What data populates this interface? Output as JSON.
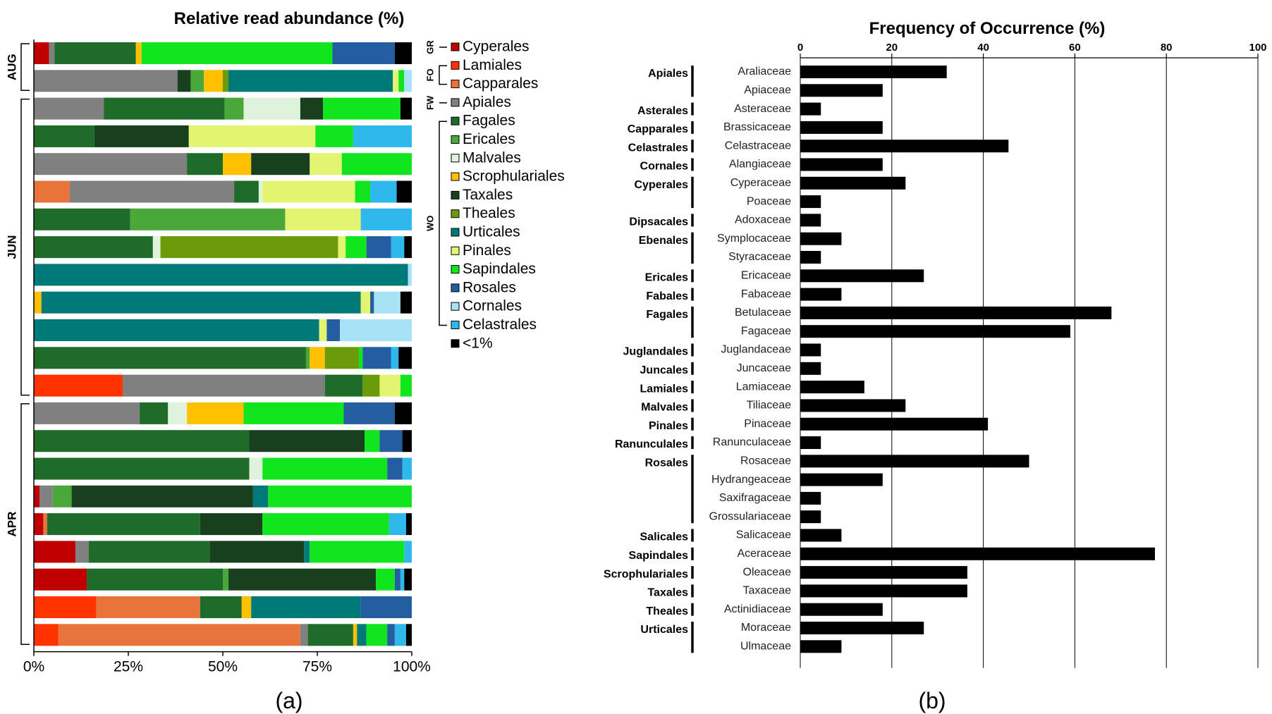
{
  "colors": {
    "Cyperales": "#c00000",
    "Lamiales": "#ff3300",
    "Capparales": "#e8743b",
    "Apiales": "#808080",
    "Fagales": "#1e6b2a",
    "Ericales": "#4aa83a",
    "Malvales": "#dff2dc",
    "Scrophulariales": "#ffc000",
    "Taxales": "#18401f",
    "Theales": "#6b9a0a",
    "Urticales": "#007a78",
    "Pinales": "#e2f470",
    "Sapindales": "#11e51e",
    "Rosales": "#245ea0",
    "Cornales": "#a8e2f7",
    "Celastrales": "#2eb8ec",
    "<1%": "#000000"
  },
  "panel_a_label": "(a)",
  "panel_b_label": "(b)",
  "chart_data": [
    {
      "type": "bar",
      "orientation": "horizontal-stacked",
      "title": "Relative read abundance (%)",
      "xlim": [
        0,
        100
      ],
      "x_tick_labels": [
        "0%",
        "25%",
        "50%",
        "75%",
        "100%"
      ],
      "groups": [
        {
          "label": "AUG",
          "rows": [
            0,
            1
          ]
        },
        {
          "label": "JUN",
          "rows": [
            2,
            12
          ]
        },
        {
          "label": "APR",
          "rows": [
            13,
            21
          ]
        }
      ],
      "legend": {
        "placement": "right",
        "items": [
          "Cyperales",
          "Lamiales",
          "Capparales",
          "Apiales",
          "Fagales",
          "Ericales",
          "Malvales",
          "Scrophulariales",
          "Taxales",
          "Theales",
          "Urticales",
          "Pinales",
          "Sapindales",
          "Rosales",
          "Cornales",
          "Celastrales",
          "<1%"
        ],
        "brackets": [
          {
            "label": "GR",
            "from": 0,
            "to": 0
          },
          {
            "label": "FO",
            "from": 1,
            "to": 2
          },
          {
            "label": "FW",
            "from": 3,
            "to": 3
          },
          {
            "label": "WO",
            "from": 4,
            "to": 15
          }
        ]
      },
      "rows": [
        [
          [
            "Cyperales",
            4
          ],
          [
            "Apiales",
            1.5
          ],
          [
            "Fagales",
            21.5
          ],
          [
            "Scrophulariales",
            1.5
          ],
          [
            "Sapindales",
            50.5
          ],
          [
            "Rosales",
            16.5
          ],
          [
            "<1%",
            4.5
          ]
        ],
        [
          [
            "Apiales",
            38
          ],
          [
            "Taxales",
            3.5
          ],
          [
            "Ericales",
            3.5
          ],
          [
            "Scrophulariales",
            5
          ],
          [
            "Theales",
            1.5
          ],
          [
            "Urticales",
            43.5
          ],
          [
            "Pinales",
            1.5
          ],
          [
            "Sapindales",
            1.5
          ],
          [
            "Cornales",
            2
          ]
        ],
        [
          [
            "Apiales",
            18.5
          ],
          [
            "Fagales",
            32
          ],
          [
            "Ericales",
            5
          ],
          [
            "Malvales",
            15
          ],
          [
            "Taxales",
            6
          ],
          [
            "Sapindales",
            20.5
          ],
          [
            "<1%",
            3
          ]
        ],
        [
          [
            "Fagales",
            16
          ],
          [
            "Taxales",
            25
          ],
          [
            "Pinales",
            33.5
          ],
          [
            "Sapindales",
            10
          ],
          [
            "Celastrales",
            15.5
          ]
        ],
        [
          [
            "Apiales",
            40.5
          ],
          [
            "Fagales",
            9.5
          ],
          [
            "Scrophulariales",
            7.5
          ],
          [
            "Taxales",
            15.5
          ],
          [
            "Pinales",
            8.5
          ],
          [
            "Sapindales",
            18.5
          ]
        ],
        [
          [
            "Capparales",
            9.5
          ],
          [
            "Apiales",
            43.5
          ],
          [
            "Fagales",
            6.5
          ],
          [
            "Malvales",
            1
          ],
          [
            "Pinales",
            24.5
          ],
          [
            "Sapindales",
            4
          ],
          [
            "Celastrales",
            7
          ],
          [
            "<1%",
            4
          ]
        ],
        [
          [
            "Fagales",
            25.5
          ],
          [
            "Ericales",
            41
          ],
          [
            "Pinales",
            20
          ],
          [
            "Celastrales",
            13.5
          ]
        ],
        [
          [
            "Fagales",
            31.5
          ],
          [
            "Malvales",
            2
          ],
          [
            "Theales",
            47
          ],
          [
            "Pinales",
            2
          ],
          [
            "Sapindales",
            5.5
          ],
          [
            "Rosales",
            6.5
          ],
          [
            "Celastrales",
            3.5
          ],
          [
            "<1%",
            2
          ]
        ],
        [
          [
            "Urticales",
            99
          ],
          [
            "Cornales",
            1
          ]
        ],
        [
          [
            "Scrophulariales",
            2
          ],
          [
            "Urticales",
            84.5
          ],
          [
            "Pinales",
            2.5
          ],
          [
            "Rosales",
            1
          ],
          [
            "Cornales",
            7
          ],
          [
            "<1%",
            3
          ]
        ],
        [
          [
            "Urticales",
            75.5
          ],
          [
            "Pinales",
            2
          ],
          [
            "Rosales",
            3.5
          ],
          [
            "Cornales",
            19
          ]
        ],
        [
          [
            "Fagales",
            72
          ],
          [
            "Ericales",
            1
          ],
          [
            "Scrophulariales",
            4
          ],
          [
            "Theales",
            9
          ],
          [
            "Sapindales",
            1
          ],
          [
            "Rosales",
            7.5
          ],
          [
            "Celastrales",
            2
          ],
          [
            "<1%",
            3.5
          ]
        ],
        [
          [
            "Lamiales",
            23.5
          ],
          [
            "Apiales",
            53.5
          ],
          [
            "Fagales",
            10
          ],
          [
            "Theales",
            4.5
          ],
          [
            "Pinales",
            5.5
          ],
          [
            "Sapindales",
            3
          ]
        ],
        [
          [
            "Apiales",
            28
          ],
          [
            "Fagales",
            7.5
          ],
          [
            "Malvales",
            5
          ],
          [
            "Scrophulariales",
            15
          ],
          [
            "Sapindales",
            26.5
          ],
          [
            "Rosales",
            13.5
          ],
          [
            "<1%",
            4.5
          ]
        ],
        [
          [
            "Fagales",
            57
          ],
          [
            "Taxales",
            30.5
          ],
          [
            "Sapindales",
            4
          ],
          [
            "Rosales",
            6
          ],
          [
            "<1%",
            2.5
          ]
        ],
        [
          [
            "Fagales",
            57
          ],
          [
            "Malvales",
            3.5
          ],
          [
            "Sapindales",
            33
          ],
          [
            "Rosales",
            4
          ],
          [
            "Celastrales",
            2.5
          ]
        ],
        [
          [
            "Cyperales",
            1.5
          ],
          [
            "Apiales",
            3.5
          ],
          [
            "Ericales",
            5
          ],
          [
            "Taxales",
            48
          ],
          [
            "Urticales",
            4
          ],
          [
            "Sapindales",
            38
          ]
        ],
        [
          [
            "Cyperales",
            2.5
          ],
          [
            "Capparales",
            1
          ],
          [
            "Fagales",
            40.5
          ],
          [
            "Taxales",
            16.5
          ],
          [
            "Sapindales",
            33.5
          ],
          [
            "Celastrales",
            4.5
          ],
          [
            "<1%",
            1.5
          ]
        ],
        [
          [
            "Cyperales",
            11
          ],
          [
            "Apiales",
            3.5
          ],
          [
            "Fagales",
            32
          ],
          [
            "Taxales",
            25
          ],
          [
            "Urticales",
            1.5
          ],
          [
            "Sapindales",
            25
          ],
          [
            "Celastrales",
            2
          ]
        ],
        [
          [
            "Cyperales",
            14
          ],
          [
            "Fagales",
            36
          ],
          [
            "Ericales",
            1.5
          ],
          [
            "Taxales",
            39
          ],
          [
            "Sapindales",
            5
          ],
          [
            "Rosales",
            1.5
          ],
          [
            "Celastrales",
            1
          ],
          [
            "<1%",
            2
          ]
        ],
        [
          [
            "Lamiales",
            16.5
          ],
          [
            "Capparales",
            27.5
          ],
          [
            "Fagales",
            11
          ],
          [
            "Scrophulariales",
            2.5
          ],
          [
            "Urticales",
            29
          ],
          [
            "Rosales",
            13.5
          ]
        ],
        [
          [
            "Lamiales",
            6.5
          ],
          [
            "Capparales",
            64
          ],
          [
            "Apiales",
            2
          ],
          [
            "Fagales",
            12
          ],
          [
            "Scrophulariales",
            1
          ],
          [
            "Urticales",
            2.5
          ],
          [
            "Sapindales",
            5.5
          ],
          [
            "Rosales",
            2
          ],
          [
            "Celastrales",
            3
          ],
          [
            "<1%",
            1.5
          ]
        ]
      ]
    },
    {
      "type": "bar",
      "orientation": "horizontal",
      "title": "Frequency of Occurrence (%)",
      "xlim": [
        0,
        100
      ],
      "x_tick_labels": [
        "0",
        "20",
        "40",
        "60",
        "80",
        "100"
      ],
      "grid": "vertical",
      "categories": [
        "Araliaceae",
        "Apiaceae",
        "Asteraceae",
        "Brassicaceae",
        "Celastraceae",
        "Alangiaceae",
        "Cyperaceae",
        "Poaceae",
        "Adoxaceae",
        "Symplocaceae",
        "Styracaceae",
        "Ericaceae",
        "Fabaceae",
        "Betulaceae",
        "Fagaceae",
        "Juglandaceae",
        "Juncaceae",
        "Lamiaceae",
        "Tiliaceae",
        "Pinaceae",
        "Ranunculaceae",
        "Rosaceae",
        "Hydrangeaceae",
        "Saxifragaceae",
        "Grossulariaceae",
        "Salicaceae",
        "Aceraceae",
        "Oleaceae",
        "Taxaceae",
        "Actinidiaceae",
        "Moraceae",
        "Ulmaceae"
      ],
      "values": [
        32,
        18,
        4.5,
        18,
        45.5,
        18,
        23,
        4.5,
        4.5,
        9,
        4.5,
        27,
        9,
        68,
        59,
        4.5,
        4.5,
        14,
        23,
        41,
        4.5,
        50,
        18,
        4.5,
        4.5,
        9,
        77.5,
        36.5,
        36.5,
        18,
        27,
        9
      ],
      "orders": [
        {
          "label": "Apiales",
          "from": 0,
          "to": 1
        },
        {
          "label": "Asterales",
          "from": 2,
          "to": 2
        },
        {
          "label": "Capparales",
          "from": 3,
          "to": 3
        },
        {
          "label": "Celastrales",
          "from": 4,
          "to": 4
        },
        {
          "label": "Cornales",
          "from": 5,
          "to": 5
        },
        {
          "label": "Cyperales",
          "from": 6,
          "to": 7
        },
        {
          "label": "Dipsacales",
          "from": 8,
          "to": 8
        },
        {
          "label": "Ebenales",
          "from": 9,
          "to": 10
        },
        {
          "label": "Ericales",
          "from": 11,
          "to": 11
        },
        {
          "label": "Fabales",
          "from": 12,
          "to": 12
        },
        {
          "label": "Fagales",
          "from": 13,
          "to": 14
        },
        {
          "label": "Juglandales",
          "from": 15,
          "to": 15
        },
        {
          "label": "Juncales",
          "from": 16,
          "to": 16
        },
        {
          "label": "Lamiales",
          "from": 17,
          "to": 17
        },
        {
          "label": "Malvales",
          "from": 18,
          "to": 18
        },
        {
          "label": "Pinales",
          "from": 19,
          "to": 19
        },
        {
          "label": "Ranunculales",
          "from": 20,
          "to": 20
        },
        {
          "label": "Rosales",
          "from": 21,
          "to": 24
        },
        {
          "label": "Salicales",
          "from": 25,
          "to": 25
        },
        {
          "label": "Sapindales",
          "from": 26,
          "to": 26
        },
        {
          "label": "Scrophulariales",
          "from": 27,
          "to": 27
        },
        {
          "label": "Taxales",
          "from": 28,
          "to": 28
        },
        {
          "label": "Theales",
          "from": 29,
          "to": 29
        },
        {
          "label": "Urticales",
          "from": 30,
          "to": 31
        }
      ]
    }
  ]
}
